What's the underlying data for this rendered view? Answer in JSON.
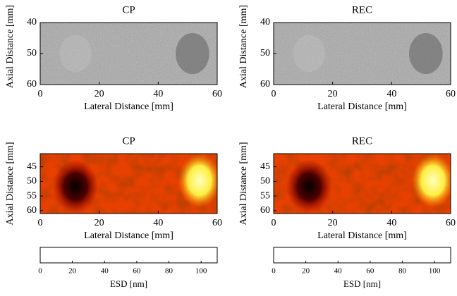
{
  "chart_data": [
    {
      "type": "image",
      "style": "bmode",
      "title": "CP",
      "xlabel": "Lateral Distance [mm]",
      "ylabel": "Axial Distance [mm]",
      "xlim": [
        0,
        60
      ],
      "xticks": [
        0,
        20,
        40,
        60
      ],
      "ylim": [
        40,
        60
      ],
      "yticks": [
        40,
        50,
        60
      ]
    },
    {
      "type": "image",
      "style": "bmode",
      "title": "REC",
      "xlabel": "Lateral Distance [mm]",
      "ylabel": "Axial Distance [mm]",
      "xlim": [
        0,
        60
      ],
      "xticks": [
        0,
        20,
        40,
        60
      ],
      "ylim": [
        40,
        60
      ],
      "yticks": [
        40,
        50,
        60
      ]
    },
    {
      "type": "image",
      "style": "esd",
      "title": "CP",
      "xlabel": "Lateral Distance [mm]",
      "ylabel": "Axial Distance [mm]",
      "xlim": [
        0,
        60
      ],
      "xticks": [
        0,
        20,
        40,
        60
      ],
      "ylim": [
        40.5,
        61
      ],
      "yticks": [
        45,
        50,
        55,
        60
      ]
    },
    {
      "type": "image",
      "style": "esd",
      "title": "REC",
      "xlabel": "Lateral Distance [mm]",
      "ylabel": "Axial Distance [mm]",
      "xlim": [
        0,
        60
      ],
      "xticks": [
        0,
        20,
        40,
        60
      ],
      "ylim": [
        40.5,
        61
      ],
      "yticks": [
        45,
        50,
        55,
        60
      ]
    },
    {
      "type": "colorbar",
      "label": "ESD [nm]",
      "clim": [
        0,
        110
      ],
      "ticks": [
        0,
        20,
        40,
        60,
        80,
        100
      ],
      "colors": [
        "#000000",
        "#b00000",
        "#ff3000",
        "#ff9000",
        "#ffff40",
        "#ffffff"
      ]
    },
    {
      "type": "colorbar",
      "label": "ESD [nm]",
      "clim": [
        0,
        110
      ],
      "ticks": [
        0,
        20,
        40,
        60,
        80,
        100
      ],
      "colors": [
        "#000000",
        "#b00000",
        "#ff3000",
        "#ff9000",
        "#ffff40",
        "#ffffff"
      ]
    }
  ]
}
